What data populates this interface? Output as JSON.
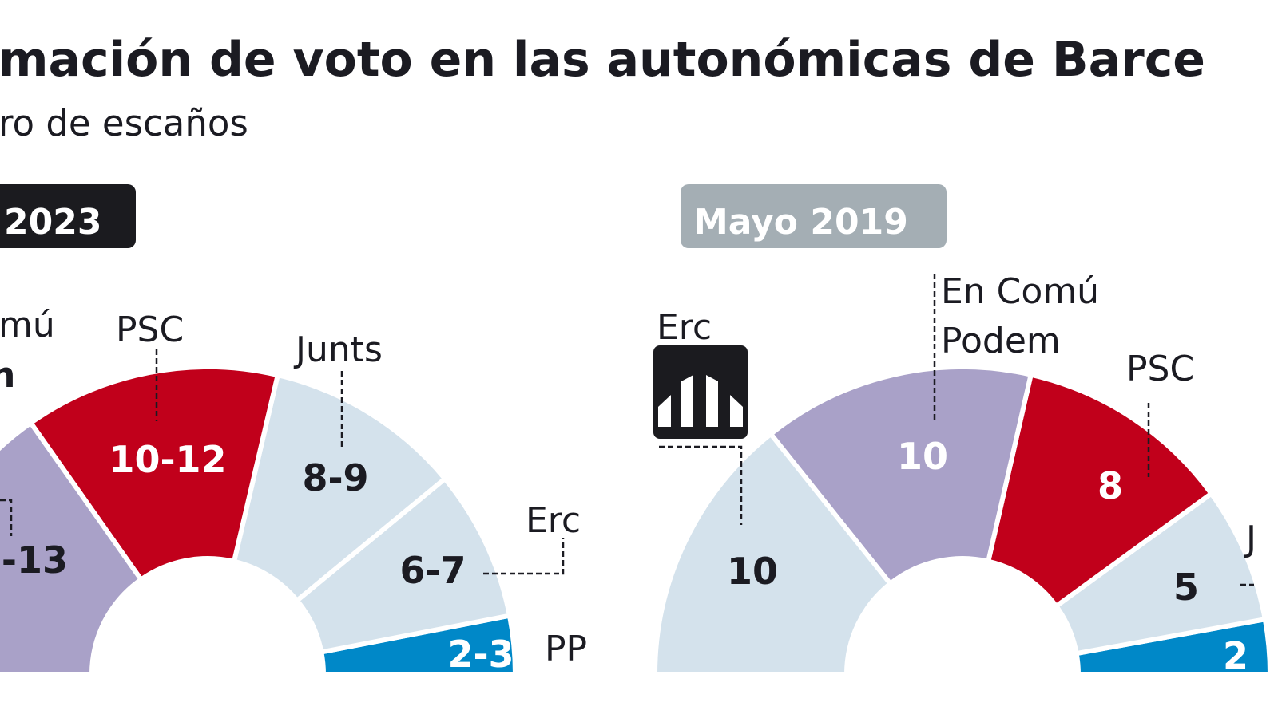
{
  "title": "mación de voto en las autonómicas de Barce",
  "subtitle": "ro de escaños",
  "colors": {
    "psc": "#c1001b",
    "en_comu": "#a9a1c8",
    "light": "#d4e2ec",
    "pp": "#0088c8",
    "text": "#1b1b22",
    "badge_current": "#1b1b1f",
    "badge_past": "#a4aeb4"
  },
  "chart_data": [
    {
      "type": "hemicycle",
      "badge": "2023",
      "segments": [
        {
          "party": "PP",
          "label": "2-3",
          "low": 2,
          "high": 3,
          "color": "#0088c8",
          "value_color": "#ffffff"
        },
        {
          "party": "Erc",
          "label": "6-7",
          "low": 6,
          "high": 7,
          "color": "#d4e2ec",
          "value_color": "#1b1b22"
        },
        {
          "party": "Junts",
          "label": "8-9",
          "low": 8,
          "high": 9,
          "color": "#d4e2ec",
          "value_color": "#1b1b22"
        },
        {
          "party": "PSC",
          "label": "10-12",
          "low": 10,
          "high": 12,
          "color": "#c1001b",
          "value_color": "#ffffff"
        },
        {
          "party_visible": [
            "mú",
            "n"
          ],
          "label": "-13",
          "high": 13,
          "color": "#a9a1c8",
          "value_color": "#1b1b22"
        }
      ]
    },
    {
      "type": "hemicycle",
      "badge": "Mayo 2019",
      "segments": [
        {
          "party": "J",
          "label": "2",
          "value": 2,
          "color": "#0088c8",
          "value_color": "#ffffff"
        },
        {
          "party": "J",
          "label": "5",
          "value": 5,
          "color": "#d4e2ec",
          "value_color": "#1b1b22"
        },
        {
          "party": "PSC",
          "label": "8",
          "value": 8,
          "color": "#c1001b",
          "value_color": "#ffffff"
        },
        {
          "party": "En Comú",
          "party_line2": "Podem",
          "label": "10",
          "value": 10,
          "color": "#a9a1c8",
          "value_color": "#ffffff"
        },
        {
          "party": "Erc",
          "label": "10",
          "value": 10,
          "color": "#d4e2ec",
          "value_color": "#1b1b22",
          "icon": "erc-logo-icon"
        }
      ]
    }
  ]
}
